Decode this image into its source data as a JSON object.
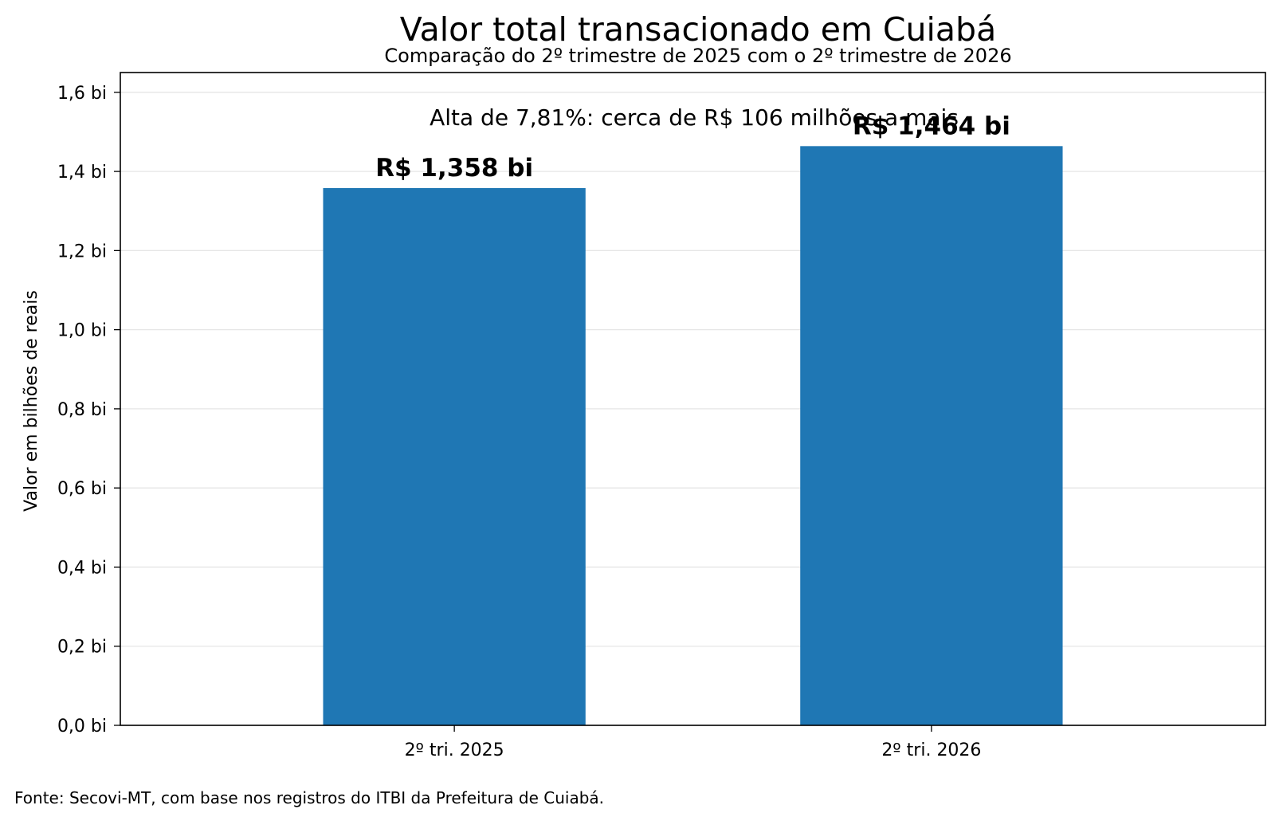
{
  "chart_data": {
    "type": "bar",
    "title": "Valor total transacionado em Cuiabá",
    "subtitle": "Comparação do 2º trimestre de 2025 com o 2º trimestre de 2026",
    "xlabel": "",
    "ylabel": "Valor em bilhões de reais",
    "categories": [
      "2º tri. 2025",
      "2º tri. 2026"
    ],
    "values": [
      1.358,
      1.464
    ],
    "data_labels": [
      "R$ 1,358 bi",
      "R$ 1,464 bi"
    ],
    "ylim": [
      0,
      1.65
    ],
    "yticks": [
      0,
      0.2,
      0.4,
      0.6,
      0.8,
      1.0,
      1.2,
      1.4,
      1.6
    ],
    "ytick_labels": [
      "0,0 bi",
      "0,2 bi",
      "0,4 bi",
      "0,6 bi",
      "0,8 bi",
      "1,0 bi",
      "1,2 bi",
      "1,4 bi",
      "1,6 bi"
    ],
    "annotation": "Alta de 7,81%: cerca de R$ 106 milhões a mais",
    "grid": "horizontal",
    "bar_color": "#1f77b4"
  },
  "footer": {
    "source": "Fonte: Secovi-MT, com base nos registros do ITBI da Prefeitura de Cuiabá."
  }
}
